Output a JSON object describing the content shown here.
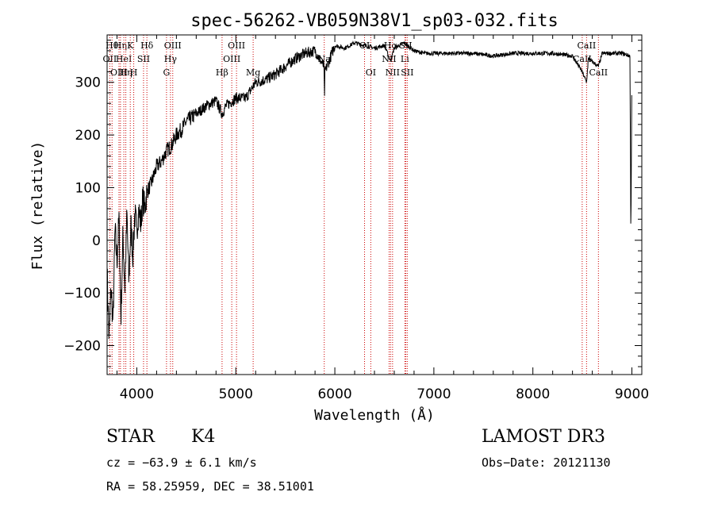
{
  "chart_data": {
    "type": "line",
    "title": "spec-56262-VB059N38V1_sp03-032.fits",
    "xlabel": "Wavelength (Å)",
    "ylabel": "Flux (relative)",
    "xlim": [
      3700,
      9100
    ],
    "ylim": [
      -255,
      390
    ],
    "xticks": [
      4000,
      5000,
      6000,
      7000,
      8000,
      9000
    ],
    "yticks": [
      -200,
      -100,
      0,
      100,
      200,
      300
    ],
    "series": [
      {
        "name": "flux",
        "x": [
          3700,
          3720,
          3740,
          3760,
          3780,
          3800,
          3820,
          3840,
          3860,
          3880,
          3900,
          3920,
          3940,
          3960,
          3980,
          4000,
          4020,
          4040,
          4060,
          4080,
          4100,
          4150,
          4200,
          4250,
          4300,
          4350,
          4400,
          4450,
          4500,
          4600,
          4700,
          4800,
          4861,
          4900,
          5000,
          5100,
          5200,
          5300,
          5400,
          5500,
          5600,
          5700,
          5800,
          5890,
          5895,
          5900,
          6000,
          6100,
          6200,
          6300,
          6400,
          6500,
          6563,
          6600,
          6700,
          6800,
          6900,
          7000,
          7200,
          7400,
          7600,
          7800,
          8000,
          8200,
          8400,
          8498,
          8542,
          8560,
          8662,
          8700,
          8800,
          8900,
          8980,
          8990,
          9000
        ],
        "y": [
          -60,
          -190,
          -90,
          -160,
          20,
          -40,
          40,
          -150,
          10,
          -90,
          50,
          -80,
          30,
          -30,
          50,
          20,
          60,
          30,
          80,
          60,
          90,
          110,
          140,
          150,
          170,
          180,
          200,
          210,
          225,
          240,
          255,
          265,
          240,
          255,
          270,
          270,
          300,
          305,
          315,
          330,
          345,
          355,
          360,
          330,
          270,
          320,
          370,
          365,
          375,
          370,
          365,
          370,
          340,
          365,
          375,
          360,
          355,
          355,
          355,
          355,
          350,
          355,
          355,
          355,
          350,
          320,
          300,
          345,
          330,
          355,
          355,
          355,
          350,
          0,
          345
        ]
      }
    ],
    "lines": [
      {
        "wave": 3727,
        "label": "OII",
        "row": 2
      },
      {
        "wave": 3750,
        "label": "Hθ",
        "row": 1
      },
      {
        "wave": 3820,
        "label": "OIII",
        "row": 3
      },
      {
        "wave": 3835,
        "label": "Hη",
        "row": 1
      },
      {
        "wave": 3869,
        "label": "HeI",
        "row": 2
      },
      {
        "wave": 3889,
        "label": "Hη",
        "row": 3
      },
      {
        "wave": 3934,
        "label": "K",
        "row": 1
      },
      {
        "wave": 3969,
        "label": "H",
        "row": 3
      },
      {
        "wave": 4068,
        "label": "SII",
        "row": 2
      },
      {
        "wave": 4102,
        "label": "Hδ",
        "row": 1
      },
      {
        "wave": 4300,
        "label": "G",
        "row": 3
      },
      {
        "wave": 4340,
        "label": "Hγ",
        "row": 2
      },
      {
        "wave": 4363,
        "label": "OIII",
        "row": 1
      },
      {
        "wave": 4861,
        "label": "Hβ",
        "row": 3
      },
      {
        "wave": 4959,
        "label": "OIII",
        "row": 2
      },
      {
        "wave": 5007,
        "label": "OIII",
        "row": 1
      },
      {
        "wave": 5175,
        "label": "Mg",
        "row": 3
      },
      {
        "wave": 5893,
        "label": "Na",
        "row": 2
      },
      {
        "wave": 6300,
        "label": "OI",
        "row": 1
      },
      {
        "wave": 6363,
        "label": "OI",
        "row": 3
      },
      {
        "wave": 6548,
        "label": "NII",
        "row": 2
      },
      {
        "wave": 6563,
        "label": "Hα",
        "row": 1
      },
      {
        "wave": 6583,
        "label": "NII",
        "row": 3
      },
      {
        "wave": 6707,
        "label": "Li",
        "row": 2
      },
      {
        "wave": 6716,
        "label": "SII",
        "row": 1
      },
      {
        "wave": 6731,
        "label": "SII",
        "row": 3
      },
      {
        "wave": 8498,
        "label": "CaII",
        "row": 2
      },
      {
        "wave": 8542,
        "label": "CaII",
        "row": 1
      },
      {
        "wave": 8662,
        "label": "CaII",
        "row": 3
      }
    ]
  },
  "info": {
    "class": "STAR",
    "subclass": "K4",
    "survey": "LAMOST DR3",
    "cz": "cz = −63.9 ± 6.1 km/s",
    "obsdate": "Obs−Date: 20121130",
    "radec": "RA =  58.25959, DEC =  38.51001"
  }
}
